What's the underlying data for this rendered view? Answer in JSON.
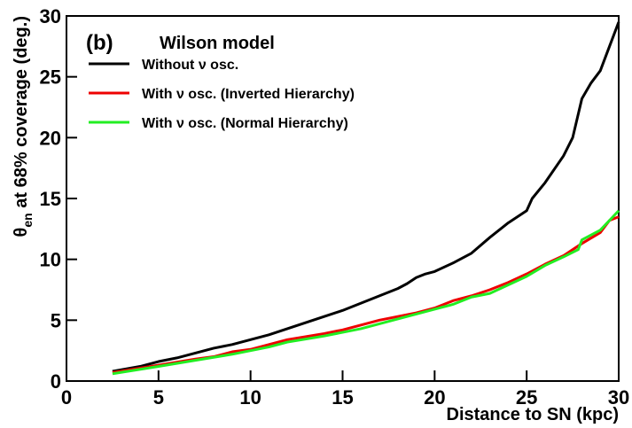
{
  "chart_data": {
    "type": "line",
    "annotations": [
      "(b)",
      "Wilson model"
    ],
    "xlabel": "Distance to SN (kpc)",
    "ylabel": {
      "symbol": "θ",
      "subscript": "en",
      "text": " at 68% coverage (deg.)"
    },
    "xlim": [
      0,
      30
    ],
    "ylim": [
      0,
      30
    ],
    "xticks": [
      0,
      5,
      10,
      15,
      20,
      25,
      30
    ],
    "yticks": [
      0,
      5,
      10,
      15,
      20,
      25,
      30
    ],
    "legend": "upper left",
    "series": [
      {
        "name": "Without ν osc.",
        "color": "#000000",
        "x": [
          2.5,
          4,
          5,
          6,
          7,
          8,
          9,
          10,
          11,
          12,
          13,
          14,
          15,
          16,
          17,
          18,
          18.5,
          19,
          19.5,
          20,
          21,
          22,
          23,
          24,
          25,
          25.3,
          26,
          27,
          27.5,
          28,
          28.5,
          29,
          29.5,
          30
        ],
        "values": [
          0.8,
          1.2,
          1.6,
          1.9,
          2.3,
          2.7,
          3.0,
          3.4,
          3.8,
          4.3,
          4.8,
          5.3,
          5.8,
          6.4,
          7.0,
          7.6,
          8.0,
          8.5,
          8.8,
          9.0,
          9.7,
          10.5,
          11.8,
          13.0,
          14.0,
          15.0,
          16.3,
          18.5,
          20.0,
          23.2,
          24.5,
          25.5,
          27.5,
          29.5
        ]
      },
      {
        "name": "With ν osc. (Inverted Hierarchy)",
        "color": "#ee0000",
        "x": [
          2.5,
          5,
          7,
          8,
          9,
          10,
          11,
          12,
          14,
          15,
          16,
          17,
          18,
          19,
          20,
          21,
          22,
          23,
          24,
          25,
          26,
          27,
          28,
          29,
          29.5,
          30
        ],
        "values": [
          0.7,
          1.3,
          1.8,
          2.0,
          2.4,
          2.6,
          3.0,
          3.4,
          3.9,
          4.2,
          4.6,
          5.0,
          5.3,
          5.6,
          6.0,
          6.6,
          7.0,
          7.5,
          8.1,
          8.8,
          9.6,
          10.3,
          11.3,
          12.2,
          13.2,
          13.5
        ]
      },
      {
        "name": "With ν osc. (Normal Hierarchy)",
        "color": "#22ee22",
        "x": [
          2.5,
          5,
          7,
          9,
          10,
          11,
          12,
          14,
          15,
          16,
          17,
          18,
          19,
          20,
          21,
          22,
          23,
          24,
          25,
          26,
          27,
          27.8,
          28,
          29,
          30
        ],
        "values": [
          0.6,
          1.2,
          1.7,
          2.2,
          2.5,
          2.8,
          3.2,
          3.7,
          4.0,
          4.3,
          4.7,
          5.1,
          5.5,
          5.9,
          6.3,
          6.9,
          7.2,
          7.9,
          8.6,
          9.5,
          10.2,
          10.8,
          11.6,
          12.4,
          14.0
        ]
      }
    ]
  }
}
